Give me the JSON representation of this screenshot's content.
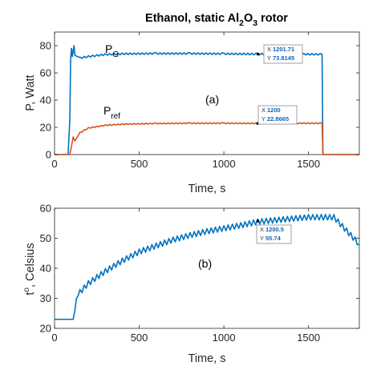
{
  "colors": {
    "blue": "#0072BD",
    "orange": "#D95319",
    "datatip_text": "#0b63b5"
  },
  "chart_data": [
    {
      "type": "line",
      "title": "Ethanol, static Al2O3 rotor",
      "title_parts": {
        "main": "Ethanol, static Al",
        "sub1": "2",
        "mid": "O",
        "sub2": "3",
        "tail": " rotor"
      },
      "xlabel": "Time, s",
      "ylabel": "P, Watt",
      "xlim": [
        0,
        1800
      ],
      "ylim": [
        0,
        90
      ],
      "xticks": [
        "0",
        "500",
        "1000",
        "1500"
      ],
      "xtick_values": [
        0,
        500,
        1000,
        1500
      ],
      "yticks": [
        "0",
        "20",
        "40",
        "60",
        "80"
      ],
      "ytick_values": [
        0,
        20,
        40,
        60,
        80
      ],
      "panel_label": "(a)",
      "series": [
        {
          "name": "P_G",
          "label_main": "P",
          "label_sub": "G",
          "x": [
            0,
            80,
            90,
            95,
            100,
            105,
            110,
            115,
            120,
            150,
            200,
            300,
            400,
            600,
            800,
            1000,
            1200,
            1400,
            1580,
            1585,
            1600,
            1620,
            1800
          ],
          "y": [
            0,
            0,
            25,
            70,
            78,
            72,
            76,
            80,
            73,
            71,
            72,
            73.5,
            74,
            74.2,
            74.2,
            74,
            73.8,
            73.8,
            73.6,
            0,
            0,
            0,
            0
          ]
        },
        {
          "name": "P_ref",
          "label_main": "P",
          "label_sub": "ref",
          "x": [
            0,
            90,
            100,
            110,
            120,
            150,
            200,
            300,
            400,
            600,
            800,
            1000,
            1200,
            1400,
            1580,
            1585,
            1600,
            1800
          ],
          "y": [
            0,
            0,
            6,
            13,
            10,
            16,
            19.5,
            21.5,
            22.3,
            22.8,
            23,
            23,
            22.9,
            23,
            23,
            0,
            0,
            0
          ]
        }
      ],
      "datatips": [
        {
          "X": "1201.71",
          "Y": "73.8145"
        },
        {
          "X": "1200",
          "Y": "22.8665"
        }
      ]
    },
    {
      "type": "line",
      "xlabel": "Time, s",
      "ylabel": "t°, Celsius",
      "ylabel_main": "t",
      "ylabel_sup": "o",
      "ylabel_tail": ", Celsius",
      "xlim": [
        0,
        1800
      ],
      "ylim": [
        20,
        60
      ],
      "xticks": [
        "0",
        "500",
        "1000",
        "1500"
      ],
      "xtick_values": [
        0,
        500,
        1000,
        1500
      ],
      "yticks": [
        "20",
        "30",
        "40",
        "50",
        "60"
      ],
      "ytick_values": [
        20,
        30,
        40,
        50,
        60
      ],
      "panel_label": "(b)",
      "series": [
        {
          "x": [
            0,
            110,
            120,
            130,
            150,
            200,
            300,
            400,
            500,
            600,
            700,
            800,
            900,
            1000,
            1100,
            1200,
            1300,
            1400,
            1500,
            1600,
            1650,
            1700,
            1750,
            1800
          ],
          "y": [
            23,
            23,
            26,
            30,
            32,
            35,
            39,
            42.5,
            45.5,
            47.5,
            49.5,
            51,
            52.3,
            53.3,
            54.3,
            55.5,
            56,
            56.5,
            57,
            57,
            57,
            54,
            51,
            48
          ]
        }
      ],
      "datatips": [
        {
          "X": "1200.5",
          "Y": "55.74"
        }
      ]
    }
  ]
}
